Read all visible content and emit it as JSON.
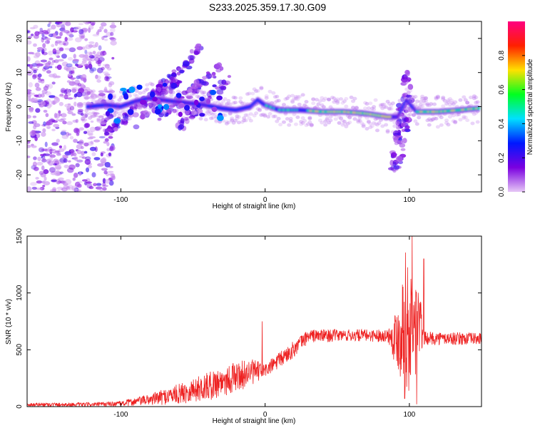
{
  "title": "S233.2025.359.17.30.G09",
  "chart_data": [
    {
      "type": "heatmap",
      "name": "spectrogram",
      "xlabel": "Height of straight line (km)",
      "ylabel": "Frequency (Hz)",
      "xlim": [
        -165,
        150
      ],
      "ylim": [
        -25,
        25
      ],
      "xticks": [
        -100,
        0,
        100
      ],
      "yticks": [
        -20,
        -10,
        0,
        10,
        20
      ],
      "ridge": [
        {
          "x": -122,
          "y": 0.0
        },
        {
          "x": -110,
          "y": 0.5
        },
        {
          "x": -100,
          "y": 0.0
        },
        {
          "x": -90,
          "y": 1.5
        },
        {
          "x": -80,
          "y": 2.5
        },
        {
          "x": -72,
          "y": 2.0
        },
        {
          "x": -62,
          "y": 1.5
        },
        {
          "x": -52,
          "y": 1.0
        },
        {
          "x": -42,
          "y": 0.5
        },
        {
          "x": -30,
          "y": -0.5
        },
        {
          "x": -20,
          "y": -1.0
        },
        {
          "x": -10,
          "y": 0.0
        },
        {
          "x": -5,
          "y": 2.0
        },
        {
          "x": 0,
          "y": 0.5
        },
        {
          "x": 10,
          "y": -1.0
        },
        {
          "x": 25,
          "y": -1.0
        },
        {
          "x": 40,
          "y": -1.5
        },
        {
          "x": 55,
          "y": -1.5
        },
        {
          "x": 70,
          "y": -2.0
        },
        {
          "x": 85,
          "y": -3.0
        },
        {
          "x": 92,
          "y": -3.0
        },
        {
          "x": 98,
          "y": 2.0
        },
        {
          "x": 105,
          "y": -1.5
        },
        {
          "x": 120,
          "y": -1.5
        },
        {
          "x": 135,
          "y": -1.0
        },
        {
          "x": 148,
          "y": -0.5
        }
      ],
      "colorbar": {
        "label": "Normalized spectral amplitude",
        "ticks": [
          0.0,
          0.2,
          0.4,
          0.6,
          0.8
        ],
        "tick_labels": [
          "0.0",
          "0.2",
          "0.4",
          "0.6",
          "0.8"
        ],
        "stops": [
          "#e7c8f6",
          "#7a00e0",
          "#0018ff",
          "#00e0ff",
          "#00ff20",
          "#ffe000",
          "#ff2000",
          "#ff0080"
        ]
      }
    },
    {
      "type": "line",
      "name": "snr",
      "xlabel": "Height of straight line (km)",
      "ylabel": "SNR (10 * v/v)",
      "xlim": [
        -165,
        150
      ],
      "ylim": [
        0,
        1500
      ],
      "xticks": [
        -100,
        0,
        100
      ],
      "yticks": [
        0,
        500,
        1000,
        1500
      ],
      "color": "#ee2222",
      "envelope": [
        {
          "x": -165,
          "lo": 0,
          "hi": 35
        },
        {
          "x": -120,
          "lo": 0,
          "hi": 35
        },
        {
          "x": -100,
          "lo": 0,
          "hi": 50
        },
        {
          "x": -80,
          "lo": 10,
          "hi": 110
        },
        {
          "x": -60,
          "lo": 20,
          "hi": 200
        },
        {
          "x": -40,
          "lo": 50,
          "hi": 300
        },
        {
          "x": -25,
          "lo": 100,
          "hi": 380
        },
        {
          "x": -10,
          "lo": 180,
          "hi": 420
        },
        {
          "x": 0,
          "lo": 250,
          "hi": 380
        },
        {
          "x": 10,
          "lo": 330,
          "hi": 480
        },
        {
          "x": 20,
          "lo": 430,
          "hi": 580
        },
        {
          "x": 30,
          "lo": 560,
          "hi": 680
        },
        {
          "x": 50,
          "lo": 570,
          "hi": 680
        },
        {
          "x": 85,
          "lo": 570,
          "hi": 680
        },
        {
          "x": 92,
          "lo": 300,
          "hi": 900
        },
        {
          "x": 97,
          "lo": 50,
          "hi": 1400
        },
        {
          "x": 102,
          "lo": 100,
          "hi": 1100
        },
        {
          "x": 106,
          "lo": 300,
          "hi": 1200
        },
        {
          "x": 110,
          "lo": 540,
          "hi": 660
        },
        {
          "x": 150,
          "lo": 540,
          "hi": 650
        }
      ],
      "spikes": [
        {
          "x": -2,
          "y": 750
        },
        {
          "x": 102,
          "y": 1500
        },
        {
          "x": 110,
          "y": 1300
        },
        {
          "x": 105,
          "y": 20
        }
      ]
    }
  ]
}
